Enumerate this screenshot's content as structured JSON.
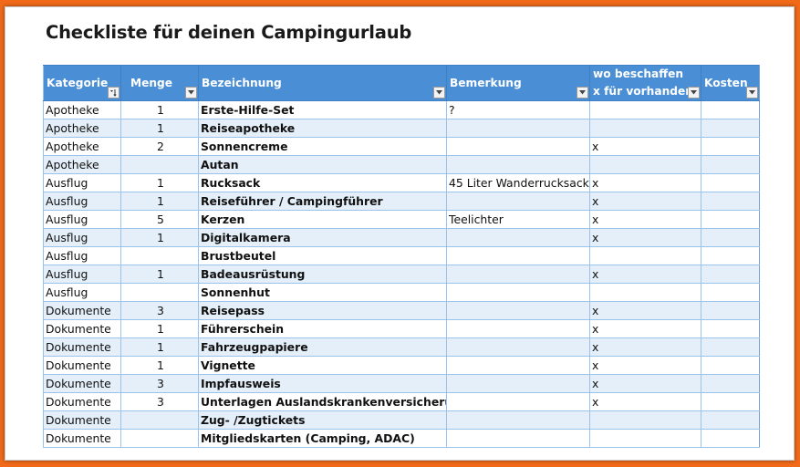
{
  "title": "Checkliste für deinen Campingurlaub",
  "columns": [
    {
      "label": "Kategorie",
      "filter_icon": "sort-filter-icon"
    },
    {
      "label": "Menge",
      "filter_icon": "dropdown-filter-icon"
    },
    {
      "label": "Bezeichnung",
      "filter_icon": "dropdown-filter-icon"
    },
    {
      "label": "Bemerkung",
      "filter_icon": "dropdown-filter-icon"
    },
    {
      "label_line1": "wo beschaffen",
      "label_line2": "x für vorhanden",
      "filter_icon": "dropdown-filter-icon"
    },
    {
      "label": "Kosten",
      "filter_icon": "dropdown-filter-icon"
    }
  ],
  "rows": [
    {
      "kategorie": "Apotheke",
      "menge": "1",
      "bezeichnung": "Erste-Hilfe-Set",
      "bemerkung": "?",
      "vorhanden": "",
      "kosten": ""
    },
    {
      "kategorie": "Apotheke",
      "menge": "1",
      "bezeichnung": "Reiseapotheke",
      "bemerkung": "",
      "vorhanden": "",
      "kosten": ""
    },
    {
      "kategorie": "Apotheke",
      "menge": "2",
      "bezeichnung": "Sonnencreme",
      "bemerkung": "",
      "vorhanden": "x",
      "kosten": ""
    },
    {
      "kategorie": "Apotheke",
      "menge": "",
      "bezeichnung": "Autan",
      "bemerkung": "",
      "vorhanden": "",
      "kosten": ""
    },
    {
      "kategorie": "Ausflug",
      "menge": "1",
      "bezeichnung": "Rucksack",
      "bemerkung": "45 Liter Wanderrucksack",
      "vorhanden": "x",
      "kosten": ""
    },
    {
      "kategorie": "Ausflug",
      "menge": "1",
      "bezeichnung": "Reiseführer / Campingführer",
      "bemerkung": "",
      "vorhanden": "x",
      "kosten": ""
    },
    {
      "kategorie": "Ausflug",
      "menge": "5",
      "bezeichnung": "Kerzen",
      "bemerkung": "Teelichter",
      "vorhanden": "x",
      "kosten": ""
    },
    {
      "kategorie": "Ausflug",
      "menge": "1",
      "bezeichnung": "Digitalkamera",
      "bemerkung": "",
      "vorhanden": "x",
      "kosten": ""
    },
    {
      "kategorie": "Ausflug",
      "menge": "",
      "bezeichnung": "Brustbeutel",
      "bemerkung": "",
      "vorhanden": "",
      "kosten": ""
    },
    {
      "kategorie": "Ausflug",
      "menge": "1",
      "bezeichnung": "Badeausrüstung",
      "bemerkung": "",
      "vorhanden": "x",
      "kosten": ""
    },
    {
      "kategorie": "Ausflug",
      "menge": "",
      "bezeichnung": "Sonnenhut",
      "bemerkung": "",
      "vorhanden": "",
      "kosten": ""
    },
    {
      "kategorie": "Dokumente",
      "menge": "3",
      "bezeichnung": "Reisepass",
      "bemerkung": "",
      "vorhanden": "x",
      "kosten": ""
    },
    {
      "kategorie": "Dokumente",
      "menge": "1",
      "bezeichnung": "Führerschein",
      "bemerkung": "",
      "vorhanden": "x",
      "kosten": ""
    },
    {
      "kategorie": "Dokumente",
      "menge": "1",
      "bezeichnung": "Fahrzeugpapiere",
      "bemerkung": "",
      "vorhanden": "x",
      "kosten": ""
    },
    {
      "kategorie": "Dokumente",
      "menge": "1",
      "bezeichnung": "Vignette",
      "bemerkung": "",
      "vorhanden": "x",
      "kosten": ""
    },
    {
      "kategorie": "Dokumente",
      "menge": "3",
      "bezeichnung": "Impfausweis",
      "bemerkung": "",
      "vorhanden": "x",
      "kosten": ""
    },
    {
      "kategorie": "Dokumente",
      "menge": "3",
      "bezeichnung": "Unterlagen Auslandskrankenversicherung",
      "bemerkung": "",
      "vorhanden": "x",
      "kosten": ""
    },
    {
      "kategorie": "Dokumente",
      "menge": "",
      "bezeichnung": "Zug- /Zugtickets",
      "bemerkung": "",
      "vorhanden": "",
      "kosten": ""
    },
    {
      "kategorie": "Dokumente",
      "menge": "",
      "bezeichnung": "Mitgliedskarten (Camping, ADAC)",
      "bemerkung": "",
      "vorhanden": "",
      "kosten": ""
    }
  ],
  "colors": {
    "frame": "#f06a1a",
    "header_bg": "#4a8fd6",
    "band_row": "#e4eff9",
    "grid_line": "#9cc2ea"
  }
}
